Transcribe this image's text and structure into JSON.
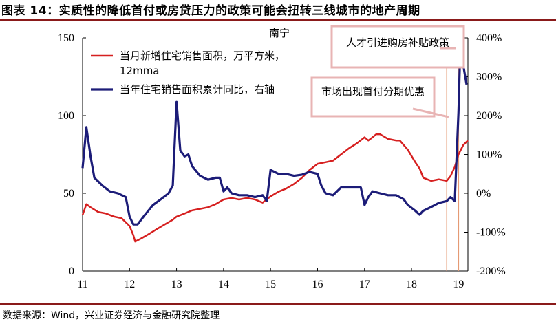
{
  "header": {
    "title": "图表 14：实质性的降低首付或房贷压力的政策可能会扭转三线城市的地产周期"
  },
  "footer": {
    "source": "数据来源：Wind，兴业证券经济与金融研究院整理"
  },
  "chart_data": {
    "type": "line",
    "title": "南宁",
    "x_tick_labels": [
      "11",
      "12",
      "13",
      "14",
      "15",
      "16",
      "17",
      "18",
      "19"
    ],
    "x_range": [
      2011.0,
      2019.2
    ],
    "y_left": {
      "range": [
        0,
        150
      ],
      "ticks": [
        0,
        50,
        100,
        150
      ]
    },
    "y_right": {
      "range": [
        -200,
        400
      ],
      "ticks": [
        -200,
        -100,
        0,
        100,
        200,
        300,
        400
      ],
      "tick_labels": [
        "-200%",
        "-100%",
        "0%",
        "100%",
        "200%",
        "300%",
        "400%"
      ]
    },
    "legend": {
      "placement": "top-left",
      "entries": [
        "当月新增住宅销售面积，万平方米，12mma",
        "当年住宅销售面积累计同比，右轴"
      ]
    },
    "annotations": [
      {
        "text": "人才引进购房补贴政策",
        "x": 2019.0
      },
      {
        "text": "市场出现首付分期优惠",
        "x": 2018.75
      }
    ],
    "colors": {
      "series1": "#d62020",
      "series2": "#1c1c78",
      "annotation": "#e59a74",
      "box": "#e8b4b4"
    },
    "series": [
      {
        "name": "当月新增住宅销售面积，万平方米，12mma",
        "axis": "left",
        "points": [
          [
            2011.0,
            36
          ],
          [
            2011.08,
            43
          ],
          [
            2011.17,
            41
          ],
          [
            2011.33,
            38
          ],
          [
            2011.5,
            37
          ],
          [
            2011.67,
            35
          ],
          [
            2011.83,
            34
          ],
          [
            2012.0,
            29
          ],
          [
            2012.08,
            23
          ],
          [
            2012.12,
            19
          ],
          [
            2012.25,
            21
          ],
          [
            2012.42,
            24
          ],
          [
            2012.58,
            27
          ],
          [
            2012.75,
            30
          ],
          [
            2012.92,
            33
          ],
          [
            2013.0,
            35
          ],
          [
            2013.17,
            37
          ],
          [
            2013.33,
            39
          ],
          [
            2013.5,
            40
          ],
          [
            2013.67,
            41
          ],
          [
            2013.83,
            43
          ],
          [
            2014.0,
            46
          ],
          [
            2014.17,
            47
          ],
          [
            2014.33,
            46
          ],
          [
            2014.5,
            47
          ],
          [
            2014.67,
            46
          ],
          [
            2014.83,
            44
          ],
          [
            2015.0,
            48
          ],
          [
            2015.17,
            51
          ],
          [
            2015.33,
            53
          ],
          [
            2015.5,
            56
          ],
          [
            2015.67,
            60
          ],
          [
            2015.83,
            65
          ],
          [
            2016.0,
            69
          ],
          [
            2016.17,
            70
          ],
          [
            2016.33,
            71
          ],
          [
            2016.5,
            75
          ],
          [
            2016.67,
            79
          ],
          [
            2016.83,
            82
          ],
          [
            2017.0,
            86
          ],
          [
            2017.08,
            84
          ],
          [
            2017.17,
            86
          ],
          [
            2017.25,
            88
          ],
          [
            2017.33,
            88
          ],
          [
            2017.5,
            85
          ],
          [
            2017.67,
            84
          ],
          [
            2017.75,
            84
          ],
          [
            2017.92,
            78
          ],
          [
            2018.08,
            70
          ],
          [
            2018.17,
            66
          ],
          [
            2018.25,
            60
          ],
          [
            2018.42,
            58
          ],
          [
            2018.58,
            59
          ],
          [
            2018.75,
            58
          ],
          [
            2018.83,
            61
          ],
          [
            2018.92,
            67
          ],
          [
            2019.0,
            75
          ],
          [
            2019.1,
            81
          ],
          [
            2019.2,
            84
          ]
        ]
      },
      {
        "name": "当年住宅销售面积累计同比，右轴",
        "axis": "right",
        "points": [
          [
            2011.0,
            65
          ],
          [
            2011.08,
            170
          ],
          [
            2011.17,
            95
          ],
          [
            2011.25,
            40
          ],
          [
            2011.42,
            20
          ],
          [
            2011.58,
            5
          ],
          [
            2011.75,
            0
          ],
          [
            2011.92,
            -10
          ],
          [
            2012.0,
            -60
          ],
          [
            2012.08,
            -80
          ],
          [
            2012.17,
            -80
          ],
          [
            2012.33,
            -55
          ],
          [
            2012.5,
            -30
          ],
          [
            2012.67,
            -15
          ],
          [
            2012.83,
            0
          ],
          [
            2012.92,
            20
          ],
          [
            2013.0,
            235
          ],
          [
            2013.08,
            110
          ],
          [
            2013.17,
            95
          ],
          [
            2013.25,
            100
          ],
          [
            2013.33,
            70
          ],
          [
            2013.5,
            45
          ],
          [
            2013.67,
            35
          ],
          [
            2013.83,
            40
          ],
          [
            2013.92,
            40
          ],
          [
            2014.0,
            5
          ],
          [
            2014.08,
            15
          ],
          [
            2014.17,
            0
          ],
          [
            2014.33,
            -5
          ],
          [
            2014.5,
            -5
          ],
          [
            2014.67,
            -10
          ],
          [
            2014.83,
            -5
          ],
          [
            2014.92,
            -20
          ],
          [
            2015.0,
            60
          ],
          [
            2015.17,
            50
          ],
          [
            2015.33,
            50
          ],
          [
            2015.5,
            45
          ],
          [
            2015.67,
            48
          ],
          [
            2015.83,
            55
          ],
          [
            2016.0,
            50
          ],
          [
            2016.08,
            20
          ],
          [
            2016.17,
            0
          ],
          [
            2016.33,
            -5
          ],
          [
            2016.5,
            15
          ],
          [
            2016.67,
            15
          ],
          [
            2016.83,
            15
          ],
          [
            2016.92,
            15
          ],
          [
            2017.0,
            -30
          ],
          [
            2017.08,
            -10
          ],
          [
            2017.17,
            5
          ],
          [
            2017.33,
            0
          ],
          [
            2017.5,
            -5
          ],
          [
            2017.67,
            -5
          ],
          [
            2017.83,
            -15
          ],
          [
            2017.92,
            -30
          ],
          [
            2018.08,
            -45
          ],
          [
            2018.17,
            -55
          ],
          [
            2018.25,
            -45
          ],
          [
            2018.42,
            -35
          ],
          [
            2018.58,
            -25
          ],
          [
            2018.75,
            -20
          ],
          [
            2018.83,
            -10
          ],
          [
            2018.92,
            -20
          ],
          [
            2019.0,
            210
          ],
          [
            2019.03,
            340
          ],
          [
            2019.1,
            330
          ],
          [
            2019.17,
            280
          ]
        ]
      }
    ]
  }
}
